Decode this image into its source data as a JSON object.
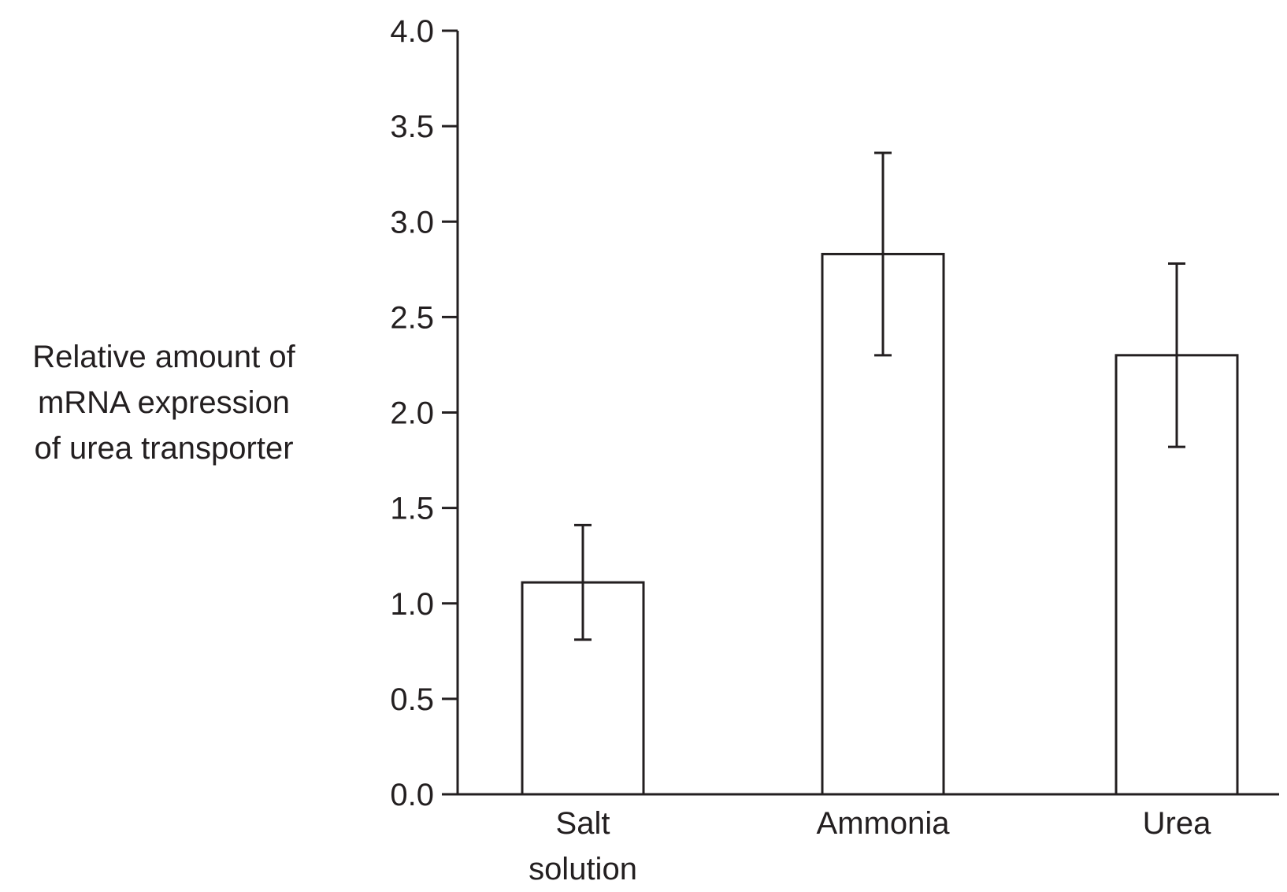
{
  "chart_data": {
    "type": "bar",
    "title": "",
    "xlabel": "",
    "ylabel_lines": [
      "Relative amount of",
      "mRNA expression",
      "of urea transporter"
    ],
    "categories": [
      [
        "Salt",
        "solution"
      ],
      [
        "Ammonia"
      ],
      [
        "Urea"
      ]
    ],
    "values": [
      1.11,
      2.83,
      2.3
    ],
    "error_low": [
      0.81,
      2.3,
      1.82
    ],
    "error_high": [
      1.41,
      3.36,
      2.78
    ],
    "ylim": [
      0.0,
      4.0
    ],
    "yticks": [
      0.0,
      0.5,
      1.0,
      1.5,
      2.0,
      2.5,
      3.0,
      3.5,
      4.0
    ],
    "ytick_labels": [
      "0.0",
      "0.5",
      "1.0",
      "1.5",
      "2.0",
      "2.5",
      "3.0",
      "3.5",
      "4.0"
    ],
    "grid": false,
    "legend": "none",
    "bar_fill": "#ffffff",
    "line_color": "#231f20"
  }
}
